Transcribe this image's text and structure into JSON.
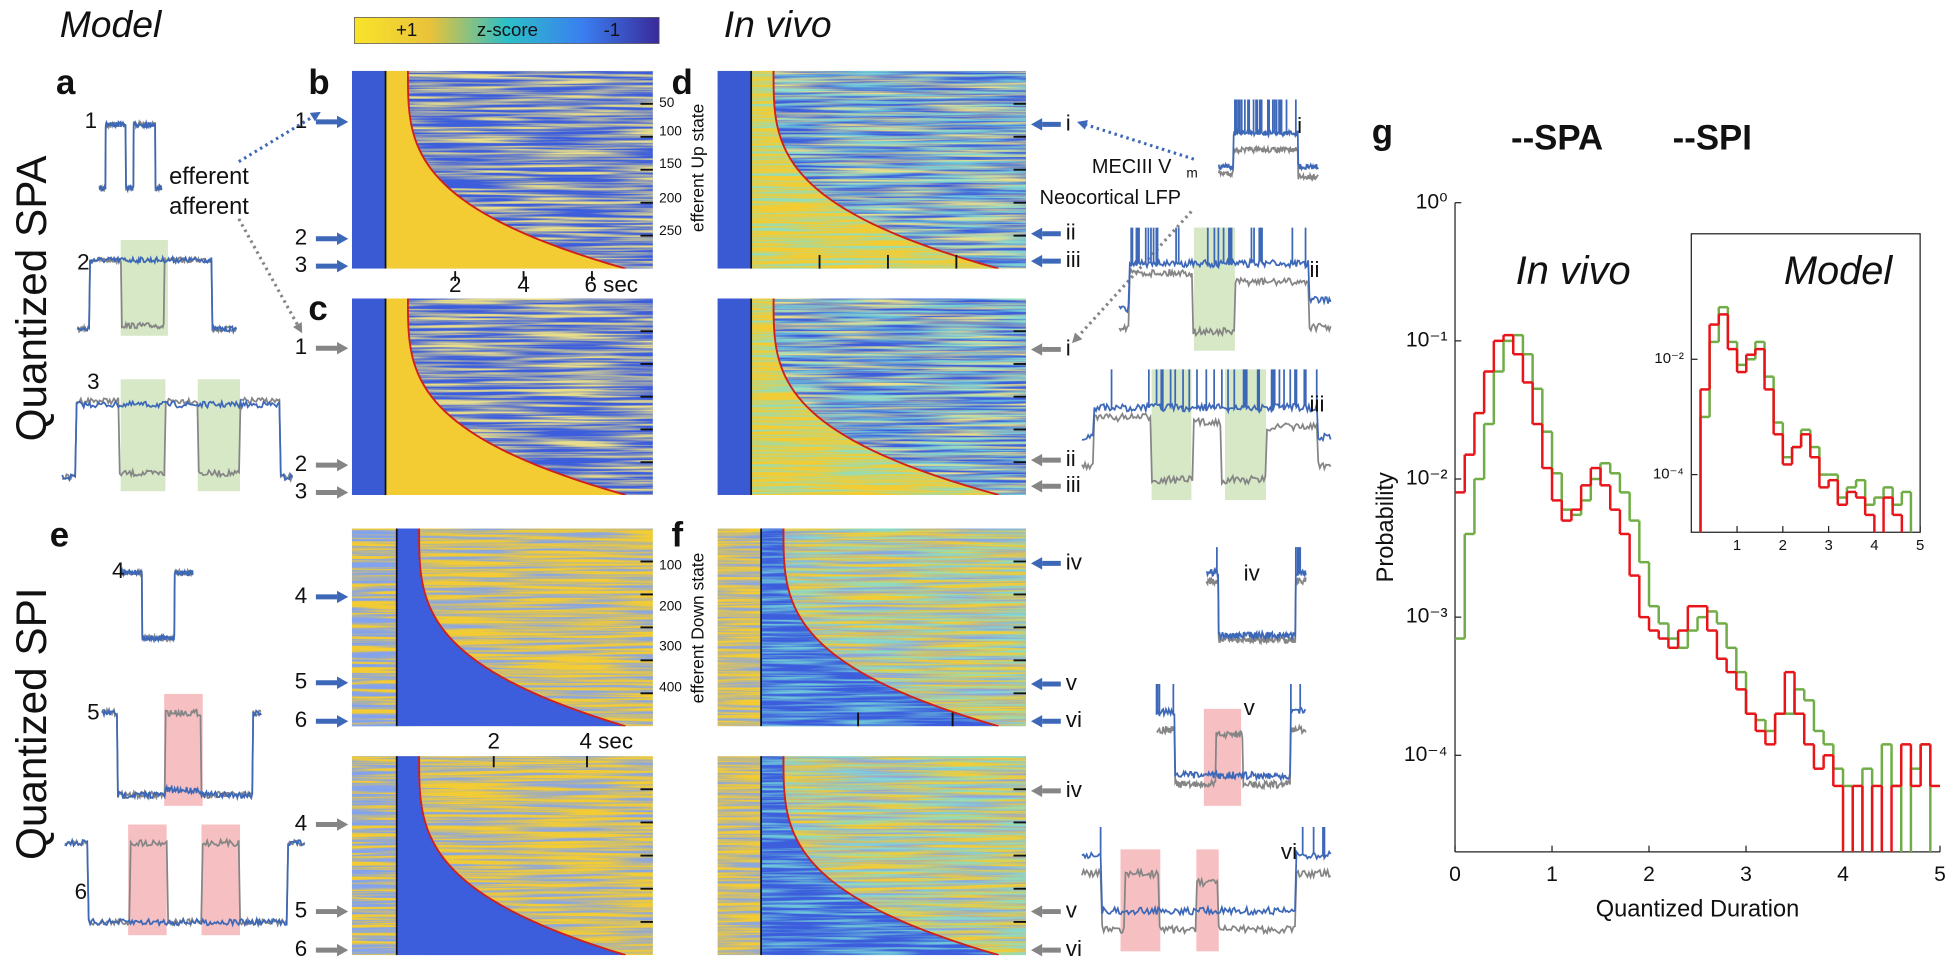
{
  "headings": {
    "model": "Model",
    "in_vivo": "In vivo"
  },
  "panel_labels": [
    "a",
    "b",
    "c",
    "d",
    "e",
    "f",
    "g"
  ],
  "row_labels": [
    "Quantized SPA",
    "Quantized SPI"
  ],
  "colorbar": {
    "high": "+1",
    "label": "z-score",
    "low": "-1"
  },
  "legend_a": {
    "efferent": "efferent",
    "afferent": "afferent"
  },
  "legend_d": {
    "vm": "MECIII V",
    "vm_sub": "m",
    "lfp": "Neocortical LFP"
  },
  "model_traces": [
    "1",
    "2",
    "3",
    "4",
    "5",
    "6"
  ],
  "vivo_traces": [
    "i",
    "ii",
    "iii",
    "iv",
    "v",
    "vi"
  ],
  "heatmap_b": {
    "rows": [
      "50",
      "100",
      "150",
      "200",
      "250"
    ],
    "axis": "efferent Up state",
    "time": [
      "2",
      "4",
      "6 sec"
    ]
  },
  "heatmap_e": {
    "rows": [
      "100",
      "200",
      "300",
      "400"
    ],
    "axis": "efferent Down state",
    "time": [
      "2",
      "4 sec"
    ]
  },
  "chart_data": [
    {
      "type": "line",
      "drawstyle": "steps-mid",
      "log_y": true,
      "xlabel": "Quantized Duration",
      "ylabel": "Probability",
      "annotations": [
        "In vivo",
        "Model"
      ],
      "xlim": [
        0,
        5
      ],
      "xticks": [
        0,
        1,
        2,
        3,
        4,
        5
      ],
      "ylim": [
        2e-05,
        1
      ],
      "yticks": [
        {
          "value": 0.0001,
          "label": "10⁻⁴"
        },
        {
          "value": 0.001,
          "label": "10⁻³"
        },
        {
          "value": 0.01,
          "label": "10⁻²"
        },
        {
          "value": 0.1,
          "label": "10⁻¹"
        },
        {
          "value": 1,
          "label": "10⁰"
        }
      ],
      "x": [
        0.05,
        0.15,
        0.25,
        0.35,
        0.45,
        0.55,
        0.65,
        0.75,
        0.85,
        0.95,
        1.05,
        1.15,
        1.25,
        1.35,
        1.45,
        1.55,
        1.65,
        1.75,
        1.85,
        1.95,
        2.05,
        2.15,
        2.25,
        2.35,
        2.45,
        2.55,
        2.65,
        2.75,
        2.85,
        2.95,
        3.05,
        3.15,
        3.25,
        3.35,
        3.45,
        3.55,
        3.65,
        3.75,
        3.85,
        3.95,
        4.05,
        4.15,
        4.25,
        4.35,
        4.45,
        4.55,
        4.65,
        4.75,
        4.85,
        4.95
      ],
      "series": [
        {
          "name": "--SPA",
          "color": "#70ad47",
          "values": [
            0.0007,
            0.004,
            0.01,
            0.025,
            0.06,
            0.1,
            0.11,
            0.08,
            0.045,
            0.022,
            0.011,
            0.006,
            0.0055,
            0.007,
            0.01,
            0.013,
            0.011,
            0.008,
            0.005,
            0.0025,
            0.0012,
            0.0009,
            0.0007,
            0.0006,
            0.0008,
            0.001,
            0.0011,
            0.0009,
            0.0006,
            0.0004,
            0.0002,
            0.00018,
            0.00015,
            0.0002,
            0.0002,
            0.0003,
            0.00025,
            0.00015,
            0.00012,
            8e-05,
            6e-05,
            null,
            8e-05,
            null,
            0.00012,
            6e-05,
            null,
            8e-05,
            0.00012,
            null
          ]
        },
        {
          "name": "--SPI",
          "color": "#e8141a",
          "values": [
            0.008,
            0.015,
            0.03,
            0.06,
            0.1,
            0.11,
            0.08,
            0.05,
            0.025,
            0.012,
            0.007,
            0.005,
            0.006,
            0.009,
            0.012,
            0.009,
            0.006,
            0.004,
            0.002,
            0.001,
            0.0008,
            0.0007,
            0.0006,
            0.0008,
            0.0012,
            0.0012,
            0.0008,
            0.0005,
            0.0004,
            0.0003,
            0.0002,
            0.00015,
            0.00012,
            0.0002,
            0.0004,
            0.0002,
            0.00012,
            8e-05,
            0.0001,
            6e-05,
            null,
            6e-05,
            null,
            6e-05,
            null,
            6e-05,
            0.00012,
            6e-05,
            0.00012,
            6e-05
          ]
        }
      ]
    },
    {
      "type": "line",
      "drawstyle": "steps-mid",
      "log_y": true,
      "xlim": [
        0,
        5
      ],
      "xticks": [
        1,
        2,
        3,
        4,
        5
      ],
      "ylim": [
        1e-05,
        1.5
      ],
      "yticks": [
        {
          "value": 0.0001,
          "label": "10⁻⁴"
        },
        {
          "value": 0.01,
          "label": "10⁻²"
        }
      ],
      "x": [
        0.1,
        0.3,
        0.5,
        0.7,
        0.9,
        1.1,
        1.3,
        1.5,
        1.7,
        1.9,
        2.1,
        2.3,
        2.5,
        2.7,
        2.9,
        3.1,
        3.3,
        3.5,
        3.7,
        3.9,
        4.1,
        4.3,
        4.5,
        4.7,
        4.9
      ],
      "series": [
        {
          "color": "#70ad47",
          "values": [
            null,
            0.001,
            0.02,
            0.08,
            0.02,
            0.008,
            0.01,
            0.02,
            0.005,
            0.0008,
            0.0002,
            0.0003,
            0.0006,
            0.0003,
            0.0001,
            0.0001,
            4e-05,
            6e-05,
            8e-05,
            3e-05,
            4e-05,
            6e-05,
            3e-05,
            5e-05,
            null
          ]
        },
        {
          "color": "#e8141a",
          "values": [
            null,
            0.003,
            0.04,
            0.06,
            0.015,
            0.006,
            0.012,
            0.015,
            0.003,
            0.0005,
            0.00015,
            0.0003,
            0.0005,
            0.0002,
            6e-05,
            8e-05,
            3e-05,
            5e-05,
            4e-05,
            2e-05,
            null,
            4e-05,
            2e-05,
            null,
            null
          ]
        }
      ]
    }
  ]
}
